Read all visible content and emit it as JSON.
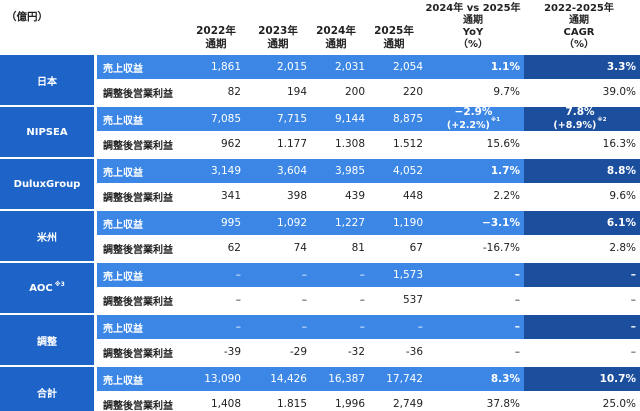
{
  "unit_label": "（億円）",
  "headers": {
    "y2022": [
      "2022年",
      "通期"
    ],
    "y2023": [
      "2023年",
      "通期"
    ],
    "y2024": [
      "2024年",
      "通期"
    ],
    "y2025": [
      "2025年",
      "通期"
    ],
    "yoy": [
      "2024年 vs 2025年",
      "通期",
      "YoY",
      "（%）"
    ],
    "cagr": [
      "2022-2025年",
      "通期",
      "CAGR",
      "（%）"
    ]
  },
  "row_labels": {
    "revenue": "売上収益",
    "op_profit": "調整後営業利益"
  },
  "segments": [
    {
      "name": "日本",
      "note": "",
      "revenue": {
        "v2022": "1,861",
        "v2023": "2,015",
        "v2024": "2,031",
        "v2025": "2,054",
        "yoy": "1.1%",
        "yoy_sub": "",
        "yoy_note": "",
        "cagr": "3.3%",
        "cagr_sub": "",
        "cagr_note": ""
      },
      "op_profit": {
        "v2022": "82",
        "v2023": "194",
        "v2024": "200",
        "v2025": "220",
        "yoy": "9.7%",
        "cagr": "39.0%"
      }
    },
    {
      "name": "NIPSEA",
      "note": "",
      "revenue": {
        "v2022": "7,085",
        "v2023": "7,715",
        "v2024": "9,144",
        "v2025": "8,875",
        "yoy": "−2.9%",
        "yoy_sub": "(+2.2%)",
        "yoy_note": "※1",
        "cagr": "7.8%",
        "cagr_sub": "(+8.9%)",
        "cagr_note": "※2"
      },
      "op_profit": {
        "v2022": "962",
        "v2023": "1.177",
        "v2024": "1.308",
        "v2025": "1.512",
        "yoy": "15.6%",
        "cagr": "16.3%"
      }
    },
    {
      "name": "DuluxGroup",
      "note": "",
      "revenue": {
        "v2022": "3,149",
        "v2023": "3,604",
        "v2024": "3,985",
        "v2025": "4,052",
        "yoy": "1.7%",
        "yoy_sub": "",
        "yoy_note": "",
        "cagr": "8.8%",
        "cagr_sub": "",
        "cagr_note": ""
      },
      "op_profit": {
        "v2022": "341",
        "v2023": "398",
        "v2024": "439",
        "v2025": "448",
        "yoy": "2.2%",
        "cagr": "9.6%"
      }
    },
    {
      "name": "米州",
      "note": "",
      "revenue": {
        "v2022": "995",
        "v2023": "1,092",
        "v2024": "1,227",
        "v2025": "1,190",
        "yoy": "−3.1%",
        "yoy_sub": "",
        "yoy_note": "",
        "cagr": "6.1%",
        "cagr_sub": "",
        "cagr_note": ""
      },
      "op_profit": {
        "v2022": "62",
        "v2023": "74",
        "v2024": "81",
        "v2025": "67",
        "yoy": "-16.7%",
        "cagr": "2.8%"
      }
    },
    {
      "name": "AOC",
      "note": "※3",
      "revenue": {
        "v2022": "–",
        "v2023": "–",
        "v2024": "–",
        "v2025": "1,573",
        "yoy": "–",
        "yoy_sub": "",
        "yoy_note": "",
        "cagr": "–",
        "cagr_sub": "",
        "cagr_note": ""
      },
      "op_profit": {
        "v2022": "–",
        "v2023": "–",
        "v2024": "–",
        "v2025": "537",
        "yoy": "–",
        "cagr": "–"
      }
    },
    {
      "name": "調整",
      "note": "",
      "revenue": {
        "v2022": "–",
        "v2023": "–",
        "v2024": "–",
        "v2025": "–",
        "yoy": "–",
        "yoy_sub": "",
        "yoy_note": "",
        "cagr": "–",
        "cagr_sub": "",
        "cagr_note": ""
      },
      "op_profit": {
        "v2022": "-39",
        "v2023": "-29",
        "v2024": "-32",
        "v2025": "-36",
        "yoy": "–",
        "cagr": "–"
      }
    },
    {
      "name": "合計",
      "note": "",
      "revenue": {
        "v2022": "13,090",
        "v2023": "14,426",
        "v2024": "16,387",
        "v2025": "17,742",
        "yoy": "8.3%",
        "yoy_sub": "",
        "yoy_note": "",
        "cagr": "10.7%",
        "cagr_sub": "",
        "cagr_note": ""
      },
      "op_profit": {
        "v2022": "1,408",
        "v2023": "1.815",
        "v2024": "1,996",
        "v2025": "2,749",
        "yoy": "37.8%",
        "cagr": "25.0%"
      }
    }
  ]
}
